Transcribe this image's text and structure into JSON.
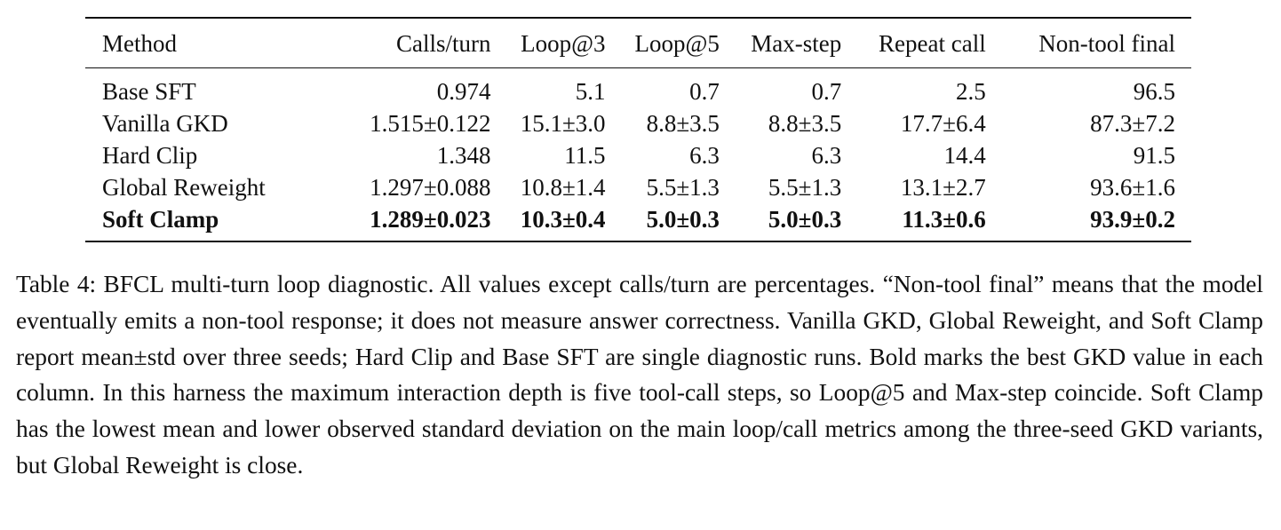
{
  "table": {
    "columns": [
      "Method",
      "Calls/turn",
      "Loop@3",
      "Loop@5",
      "Max-step",
      "Repeat call",
      "Non-tool final"
    ],
    "rows": [
      [
        "Base SFT",
        "0.974",
        "5.1",
        "0.7",
        "0.7",
        "2.5",
        "96.5"
      ],
      [
        "Vanilla GKD",
        "1.515±0.122",
        "15.1±3.0",
        "8.8±3.5",
        "8.8±3.5",
        "17.7±6.4",
        "87.3±7.2"
      ],
      [
        "Hard Clip",
        "1.348",
        "11.5",
        "6.3",
        "6.3",
        "14.4",
        "91.5"
      ],
      [
        "Global Reweight",
        "1.297±0.088",
        "10.8±1.4",
        "5.5±1.3",
        "5.5±1.3",
        "13.1±2.7",
        "93.6±1.6"
      ],
      [
        "Soft Clamp",
        "1.289±0.023",
        "10.3±0.4",
        "5.0±0.3",
        "5.0±0.3",
        "11.3±0.6",
        "93.9±0.2"
      ]
    ],
    "bold_row_index": 4
  },
  "caption": "Table 4: BFCL multi-turn loop diagnostic. All values except calls/turn are percentages. “Non-tool final” means that the model eventually emits a non-tool response; it does not measure answer correctness. Vanilla GKD, Global Reweight, and Soft Clamp report mean±std over three seeds; Hard Clip and Base SFT are single diagnostic runs. Bold marks the best GKD value in each column. In this harness the maximum interaction depth is five tool-call steps, so Loop@5 and Max-step coincide. Soft Clamp has the lowest mean and lower observed standard deviation on the main loop/call metrics among the three-seed GKD variants, but Global Reweight is close."
}
